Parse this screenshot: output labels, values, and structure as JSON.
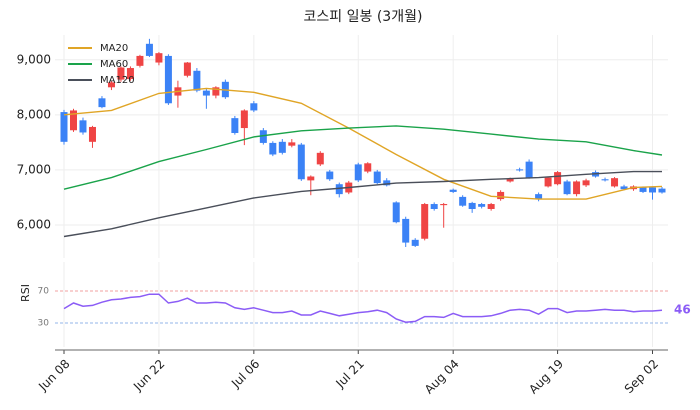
{
  "chart_data": {
    "type": "candlestick",
    "title": "코스피 일봉 (3개월)",
    "x": [
      "Jun 08",
      "Jun 09",
      "Jun 10",
      "Jun 11",
      "Jun 12",
      "Jun 15",
      "Jun 16",
      "Jun 17",
      "Jun 18",
      "Jun 19",
      "Jun 22",
      "Jun 23",
      "Jun 24",
      "Jun 25",
      "Jun 26",
      "Jun 29",
      "Jun 30",
      "Jul 01",
      "Jul 02",
      "Jul 03",
      "Jul 06",
      "Jul 07",
      "Jul 08",
      "Jul 09",
      "Jul 10",
      "Jul 13",
      "Jul 14",
      "Jul 15",
      "Jul 16",
      "Jul 17",
      "Jul 20",
      "Jul 21",
      "Jul 22",
      "Jul 23",
      "Jul 24",
      "Jul 27",
      "Jul 28",
      "Jul 29",
      "Jul 30",
      "Jul 31",
      "Aug 03",
      "Aug 04",
      "Aug 05",
      "Aug 06",
      "Aug 07",
      "Aug 10",
      "Aug 11",
      "Aug 12",
      "Aug 13",
      "Aug 14",
      "Aug 17",
      "Aug 18",
      "Aug 19",
      "Aug 20",
      "Aug 21",
      "Aug 24",
      "Aug 25",
      "Aug 26",
      "Aug 27",
      "Aug 28",
      "Aug 31",
      "Sep 01",
      "Sep 02",
      "Sep 03"
    ],
    "open": [
      8050,
      7720,
      7900,
      7510,
      8300,
      8500,
      8640,
      8650,
      8890,
      9290,
      8950,
      9070,
      8350,
      8710,
      8800,
      8440,
      8350,
      8600,
      7940,
      7760,
      8210,
      7720,
      7490,
      7510,
      7440,
      7460,
      6810,
      7100,
      6970,
      6740,
      6590,
      7100,
      6970,
      6970,
      6810,
      6410,
      6110,
      5730,
      5750,
      6380,
      6360,
      6640,
      6510,
      6400,
      6380,
      6290,
      6470,
      6790,
      7010,
      7150,
      6560,
      6700,
      6740,
      6790,
      6560,
      6720,
      6960,
      6830,
      6700,
      6700,
      6650,
      6680,
      6680,
      6660
    ],
    "high": [
      8090,
      8110,
      7950,
      7800,
      8340,
      8620,
      8880,
      8880,
      9090,
      9380,
      9140,
      9100,
      8620,
      8960,
      8850,
      8480,
      8520,
      8640,
      7980,
      8100,
      8250,
      7760,
      7520,
      7560,
      7560,
      7490,
      6900,
      7340,
      7000,
      6770,
      6800,
      7130,
      7140,
      7000,
      6850,
      6430,
      6150,
      5760,
      6400,
      6410,
      6400,
      6660,
      6540,
      6420,
      6400,
      6400,
      6630,
      6860,
      7040,
      7190,
      6590,
      6880,
      6980,
      6820,
      6810,
      6840,
      6990,
      6860,
      6870,
      6730,
      6720,
      6700,
      6700,
      6690
    ],
    "low": [
      7460,
      7690,
      7640,
      7400,
      8120,
      8450,
      8600,
      8620,
      8860,
      9050,
      8900,
      8180,
      8130,
      8680,
      8410,
      8110,
      8300,
      8290,
      7640,
      7450,
      8050,
      7460,
      7250,
      7280,
      7410,
      6800,
      6540,
      7070,
      6800,
      6500,
      6560,
      6780,
      6940,
      6740,
      6700,
      6030,
      5600,
      5600,
      5720,
      6260,
      5950,
      6580,
      6330,
      6220,
      6300,
      6260,
      6440,
      6770,
      6970,
      6840,
      6430,
      6680,
      6720,
      6540,
      6520,
      6690,
      6860,
      6790,
      6680,
      6630,
      6620,
      6580,
      6460,
      6570
    ],
    "close": [
      7510,
      8080,
      7680,
      7780,
      8140,
      8590,
      8860,
      8850,
      9070,
      9070,
      9120,
      8210,
      8500,
      8950,
      8440,
      8350,
      8500,
      8320,
      7670,
      8080,
      8080,
      7490,
      7280,
      7310,
      7500,
      6830,
      6880,
      7310,
      6830,
      6560,
      6770,
      6810,
      7120,
      6760,
      6720,
      6050,
      5680,
      5620,
      6380,
      6290,
      6380,
      6600,
      6350,
      6290,
      6330,
      6380,
      6600,
      6840,
      6990,
      6860,
      6470,
      6860,
      6960,
      6560,
      6790,
      6810,
      6880,
      6810,
      6850,
      6650,
      6700,
      6600,
      6590,
      6590
    ],
    "up_color": "#ef4444",
    "down_color": "#3b82f6",
    "ylim": [
      5400,
      9450
    ],
    "yticks": [
      {
        "value": 6000,
        "label": "6,000"
      },
      {
        "value": 7000,
        "label": "7,000"
      },
      {
        "value": 8000,
        "label": "8,000"
      },
      {
        "value": 9000,
        "label": "9,000"
      }
    ],
    "xticks": [
      "Jun 08",
      "Jun 22",
      "Jul 06",
      "Jul 21",
      "Aug 04",
      "Aug 19",
      "Sep 02"
    ],
    "grid": true,
    "legend": "upper left",
    "series": [
      {
        "name": "MA20",
        "color": "#e0a526",
        "x": [
          "Jun 08",
          "Jun 15",
          "Jun 22",
          "Jun 29",
          "Jul 06",
          "Jul 13",
          "Jul 20",
          "Jul 27",
          "Aug 03",
          "Aug 10",
          "Aug 17",
          "Aug 24",
          "Aug 31",
          "Sep 03"
        ],
        "values": [
          8000,
          8080,
          8390,
          8480,
          8410,
          8210,
          7760,
          7280,
          6830,
          6520,
          6470,
          6470,
          6680,
          6700
        ]
      },
      {
        "name": "MA60",
        "color": "#1aa34a",
        "x": [
          "Jun 08",
          "Jun 15",
          "Jun 22",
          "Jun 29",
          "Jul 06",
          "Jul 13",
          "Jul 20",
          "Jul 27",
          "Aug 03",
          "Aug 10",
          "Aug 17",
          "Aug 24",
          "Aug 31",
          "Sep 03"
        ],
        "values": [
          6650,
          6860,
          7150,
          7370,
          7600,
          7710,
          7760,
          7800,
          7740,
          7650,
          7560,
          7510,
          7350,
          7270
        ]
      },
      {
        "name": "MA120",
        "color": "#4a4f5a",
        "x": [
          "Jun 08",
          "Jun 15",
          "Jun 22",
          "Jun 29",
          "Jul 06",
          "Jul 13",
          "Jul 20",
          "Jul 27",
          "Aug 03",
          "Aug 10",
          "Aug 17",
          "Aug 24",
          "Aug 31",
          "Sep 03"
        ],
        "values": [
          5790,
          5930,
          6130,
          6310,
          6490,
          6610,
          6680,
          6760,
          6790,
          6830,
          6860,
          6920,
          6970,
          6970
        ]
      }
    ],
    "rsi": {
      "type": "line",
      "ylabel": "RSI",
      "color": "#8b5cf6",
      "ylim": [
        0,
        100
      ],
      "yticks": [
        30,
        70
      ],
      "values": [
        48,
        55,
        51,
        52,
        56,
        59,
        60,
        62,
        63,
        66,
        66,
        55,
        57,
        61,
        55,
        55,
        56,
        55,
        49,
        47,
        49,
        46,
        43,
        43,
        45,
        40,
        40,
        45,
        42,
        39,
        41,
        43,
        44,
        46,
        43,
        35,
        31,
        32,
        38,
        38,
        37,
        42,
        38,
        38,
        38,
        39,
        42,
        46,
        47,
        46,
        41,
        48,
        48,
        43,
        45,
        45,
        46,
        47,
        46,
        46,
        44,
        45,
        45,
        46
      ]
    }
  }
}
